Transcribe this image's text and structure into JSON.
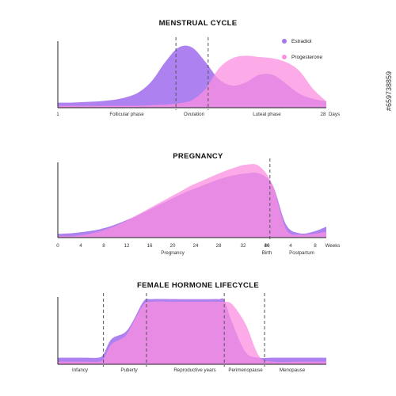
{
  "watermark": "#659738859",
  "colors": {
    "estradiol": "#a676ee",
    "progesterone": "#fb8fe0",
    "overlap": "#ca73e9",
    "axis": "#222222"
  },
  "chart_data": [
    {
      "type": "area",
      "title": "MENSTRUAL CYCLE",
      "legend": {
        "placement": "top-right",
        "entries": [
          "Estradiol",
          "Progesterone"
        ]
      },
      "x_ticks": [
        "1",
        "28"
      ],
      "x_unit": "Days",
      "phase_labels": [
        "Follicular phase",
        "Ovulation",
        "Luteal phase"
      ],
      "markers": [
        0.44,
        0.56
      ],
      "x": [
        0,
        0.05,
        0.1,
        0.15,
        0.2,
        0.25,
        0.3,
        0.35,
        0.4,
        0.45,
        0.5,
        0.55,
        0.6,
        0.65,
        0.7,
        0.75,
        0.8,
        0.85,
        0.9,
        0.95,
        1
      ],
      "series": [
        {
          "name": "Estradiol",
          "values": [
            0.08,
            0.08,
            0.09,
            0.1,
            0.12,
            0.16,
            0.24,
            0.42,
            0.72,
            0.95,
            0.95,
            0.72,
            0.45,
            0.35,
            0.4,
            0.52,
            0.52,
            0.38,
            0.22,
            0.14,
            0.1
          ]
        },
        {
          "name": "Progesterone",
          "values": [
            0.03,
            0.03,
            0.03,
            0.03,
            0.03,
            0.03,
            0.03,
            0.04,
            0.05,
            0.07,
            0.12,
            0.3,
            0.62,
            0.78,
            0.82,
            0.8,
            0.78,
            0.72,
            0.58,
            0.3,
            0.1
          ]
        }
      ]
    },
    {
      "type": "area",
      "title": "PREGNANCY",
      "x_ticks": [
        "0",
        "4",
        "8",
        "12",
        "16",
        "20",
        "24",
        "28",
        "32",
        "36",
        "40",
        "4",
        "8"
      ],
      "x_unit": "Weeks",
      "phase_labels": [
        "Pregnancy",
        "Birth",
        "Postpartum"
      ],
      "markers": [
        0.79
      ],
      "x": [
        0,
        0.05,
        0.1,
        0.15,
        0.2,
        0.25,
        0.3,
        0.35,
        0.4,
        0.45,
        0.5,
        0.55,
        0.6,
        0.65,
        0.7,
        0.75,
        0.8,
        0.85,
        0.9,
        0.95,
        1
      ],
      "series": [
        {
          "name": "Estradiol",
          "values": [
            0.05,
            0.06,
            0.08,
            0.11,
            0.16,
            0.23,
            0.31,
            0.4,
            0.49,
            0.58,
            0.66,
            0.73,
            0.8,
            0.85,
            0.88,
            0.88,
            0.72,
            0.18,
            0.06,
            0.08,
            0.15
          ]
        },
        {
          "name": "Progesterone",
          "values": [
            0.02,
            0.02,
            0.04,
            0.08,
            0.14,
            0.22,
            0.32,
            0.42,
            0.52,
            0.62,
            0.72,
            0.8,
            0.88,
            0.95,
            1.0,
            0.98,
            0.72,
            0.12,
            0.04,
            0.05,
            0.08
          ]
        }
      ]
    },
    {
      "type": "area",
      "title": "FEMALE HORMONE LIFECYCLE",
      "phase_labels": [
        "Infancy",
        "Puberty",
        "Reproductive years",
        "Perimenopause",
        "Menopause"
      ],
      "markers": [
        0.17,
        0.33,
        0.62,
        0.77
      ],
      "x": [
        0,
        0.05,
        0.1,
        0.15,
        0.17,
        0.2,
        0.25,
        0.28,
        0.32,
        0.35,
        0.45,
        0.55,
        0.6,
        0.62,
        0.65,
        0.7,
        0.75,
        0.8,
        0.9,
        1
      ],
      "series": [
        {
          "name": "Estradiol",
          "values": [
            0.1,
            0.1,
            0.1,
            0.1,
            0.15,
            0.38,
            0.48,
            0.65,
            0.95,
            0.98,
            0.98,
            0.98,
            0.98,
            0.96,
            0.62,
            0.18,
            0.1,
            0.1,
            0.1,
            0.1
          ]
        },
        {
          "name": "Progesterone",
          "values": [
            0.04,
            0.04,
            0.04,
            0.04,
            0.08,
            0.3,
            0.42,
            0.62,
            0.9,
            0.94,
            0.94,
            0.94,
            0.94,
            0.94,
            0.9,
            0.6,
            0.12,
            0.04,
            0.04,
            0.04
          ]
        }
      ]
    }
  ]
}
